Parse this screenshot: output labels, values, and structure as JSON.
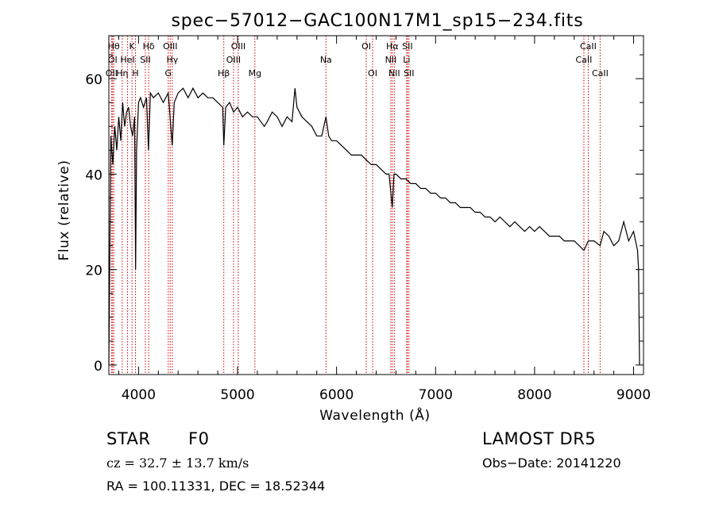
{
  "chart_data": {
    "type": "line",
    "title": "spec−57012−GAC100N17M1_sp15−234.fits",
    "xlabel": "Wavelength (Å)",
    "ylabel": "Flux (relative)",
    "xlim": [
      3700,
      9100
    ],
    "ylim": [
      -2,
      69
    ],
    "xticks": [
      4000,
      5000,
      6000,
      7000,
      8000,
      9000
    ],
    "yticks": [
      0,
      20,
      40,
      60
    ],
    "grid": false,
    "series": [
      {
        "x": [
          3700,
          3720,
          3740,
          3760,
          3780,
          3800,
          3820,
          3840,
          3860,
          3880,
          3900,
          3920,
          3940,
          3960,
          3970,
          3980,
          4000,
          4020,
          4050,
          4080,
          4100,
          4120,
          4150,
          4200,
          4250,
          4300,
          4340,
          4360,
          4400,
          4450,
          4500,
          4550,
          4600,
          4650,
          4700,
          4750,
          4800,
          4850,
          4861,
          4880,
          4920,
          4960,
          5000,
          5050,
          5100,
          5150,
          5200,
          5270,
          5300,
          5350,
          5400,
          5450,
          5500,
          5550,
          5580,
          5600,
          5650,
          5700,
          5750,
          5800,
          5850,
          5893,
          5920,
          5950,
          6000,
          6050,
          6100,
          6150,
          6200,
          6250,
          6300,
          6350,
          6400,
          6450,
          6500,
          6530,
          6563,
          6580,
          6600,
          6650,
          6700,
          6750,
          6800,
          6850,
          6900,
          6950,
          7000,
          7050,
          7100,
          7150,
          7200,
          7250,
          7300,
          7350,
          7400,
          7450,
          7500,
          7550,
          7600,
          7650,
          7700,
          7750,
          7800,
          7850,
          7900,
          7950,
          8000,
          8050,
          8100,
          8150,
          8200,
          8250,
          8300,
          8350,
          8400,
          8450,
          8498,
          8542,
          8600,
          8662,
          8700,
          8750,
          8800,
          8850,
          8900,
          8950,
          9000,
          9020,
          9040,
          9050,
          9060
        ],
        "y": [
          0,
          48,
          42,
          50,
          45,
          52,
          47,
          55,
          50,
          53,
          54,
          50,
          48,
          52,
          20,
          45,
          55,
          56,
          54,
          56,
          45,
          57,
          56,
          57,
          55,
          57,
          46,
          55,
          57,
          58,
          56,
          58,
          56,
          57,
          56,
          56,
          55,
          54,
          46,
          54,
          55,
          53,
          54,
          52,
          53,
          52,
          52,
          50,
          51,
          53,
          52,
          50,
          52,
          51,
          58,
          54,
          52,
          51,
          50,
          48,
          48,
          52,
          48,
          47,
          47,
          46,
          45,
          44,
          44,
          44,
          43,
          42,
          42,
          41,
          40,
          40,
          33,
          40,
          40,
          39,
          39,
          38,
          38,
          37,
          37,
          36,
          36,
          35,
          35,
          34,
          34,
          33,
          33,
          33,
          32,
          32,
          31,
          31,
          30,
          31,
          30,
          29,
          30,
          29,
          28,
          29,
          28,
          29,
          28,
          27,
          27,
          27,
          26,
          26,
          26,
          25,
          24,
          26,
          26,
          25,
          28,
          27,
          25,
          26,
          30,
          26,
          28,
          26,
          24,
          20,
          0
        ]
      }
    ],
    "annotations": [
      {
        "label": "OII",
        "wavelength": 3727,
        "row": 3
      },
      {
        "label": "OI",
        "wavelength": 3738,
        "row": 2
      },
      {
        "label": "Hθ",
        "wavelength": 3750,
        "row": 1
      },
      {
        "label": "Hη",
        "wavelength": 3835,
        "row": 3
      },
      {
        "label": "HeI",
        "wavelength": 3889,
        "row": 2
      },
      {
        "label": "K",
        "wavelength": 3934,
        "row": 1
      },
      {
        "label": "H",
        "wavelength": 3969,
        "row": 3
      },
      {
        "label": "SII",
        "wavelength": 4069,
        "row": 2
      },
      {
        "label": "Hδ",
        "wavelength": 4102,
        "row": 1
      },
      {
        "label": "G",
        "wavelength": 4300,
        "row": 3
      },
      {
        "label": "OIII",
        "wavelength": 4320,
        "row": 1
      },
      {
        "label": "Hγ",
        "wavelength": 4341,
        "row": 2
      },
      {
        "label": "Hβ",
        "wavelength": 4861,
        "row": 3
      },
      {
        "label": "OIII",
        "wavelength": 4959,
        "row": 2
      },
      {
        "label": "OIII",
        "wavelength": 5007,
        "row": 1
      },
      {
        "label": "Mg",
        "wavelength": 5175,
        "row": 3
      },
      {
        "label": "Na",
        "wavelength": 5893,
        "row": 2
      },
      {
        "label": "OI",
        "wavelength": 6300,
        "row": 1
      },
      {
        "label": "OI",
        "wavelength": 6364,
        "row": 3
      },
      {
        "label": "NII",
        "wavelength": 6548,
        "row": 2
      },
      {
        "label": "NII",
        "wavelength": 6583,
        "row": 3
      },
      {
        "label": "Hα",
        "wavelength": 6563,
        "row": 1
      },
      {
        "label": "Li",
        "wavelength": 6708,
        "row": 2
      },
      {
        "label": "SII",
        "wavelength": 6716,
        "row": 1
      },
      {
        "label": "SII",
        "wavelength": 6731,
        "row": 3
      },
      {
        "label": "CaII",
        "wavelength": 8498,
        "row": 2
      },
      {
        "label": "CaII",
        "wavelength": 8542,
        "row": 1
      },
      {
        "label": "CaII",
        "wavelength": 8662,
        "row": 3
      }
    ]
  },
  "info": {
    "class_label": "STAR",
    "subclass": "F0",
    "survey": "LAMOST DR5",
    "cz": "cz = 32.7 ± 13.7 km/s",
    "obs_date": "Obs−Date: 20141220",
    "coords": "RA = 100.11331, DEC =  18.52344"
  },
  "colors": {
    "spectrum": "#000000",
    "line_markers": "#cc0000",
    "axes": "#000000",
    "background": "#ffffff"
  }
}
